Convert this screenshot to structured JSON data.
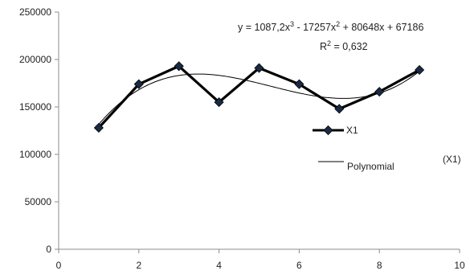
{
  "chart_data": {
    "type": "line",
    "x_ticks": [
      "0",
      "2",
      "4",
      "6",
      "8",
      "10"
    ],
    "y_ticks": [
      "0",
      "50000",
      "100000",
      "150000",
      "200000",
      "250000"
    ],
    "xlim": [
      0,
      10
    ],
    "ylim": [
      0,
      250000
    ],
    "grid": false,
    "series": [
      {
        "name": "X1",
        "x": [
          1,
          2,
          3,
          4,
          5,
          6,
          7,
          8,
          9
        ],
        "values": [
          128000,
          174000,
          193000,
          155000,
          191000,
          174000,
          148000,
          166000,
          189000
        ],
        "color": "#000000",
        "marker": "diamond"
      }
    ],
    "trendline": {
      "name": "Polynomial",
      "coefficients": [
        1087.2,
        -17257,
        80648,
        67186
      ],
      "x_range": [
        1,
        9
      ],
      "color": "#000000"
    },
    "equation": {
      "line1_prefix": "y = 1087,2x",
      "line1_sup1": "3",
      "line1_mid1": " - 17257x",
      "line1_sup2": "2",
      "line1_suffix": " + 80648x + 67186",
      "line2_prefix": "R",
      "line2_sup": "2",
      "line2_suffix": " = 0,632"
    },
    "side_label": "(X1)",
    "legend_position": "right"
  }
}
